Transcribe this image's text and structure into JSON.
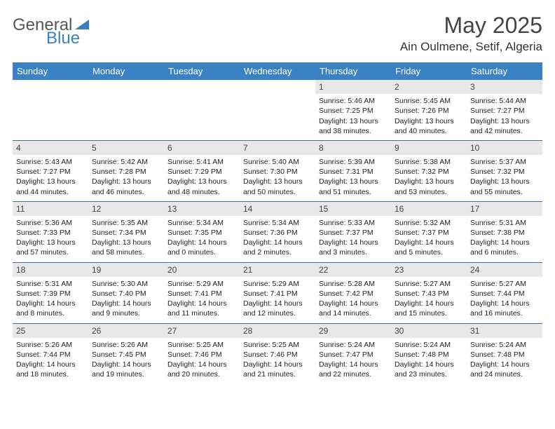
{
  "logo": {
    "general": "General",
    "blue": "Blue"
  },
  "header": {
    "month_title": "May 2025",
    "location": "Ain Oulmene, Setif, Algeria"
  },
  "colors": {
    "header_bg": "#3a82c4",
    "header_text": "#ffffff",
    "row_border": "#3a6fa5",
    "daynum_bg": "#e8e8e8",
    "logo_blue": "#3a7fc4",
    "logo_gray": "#555555"
  },
  "weekdays": [
    "Sunday",
    "Monday",
    "Tuesday",
    "Wednesday",
    "Thursday",
    "Friday",
    "Saturday"
  ],
  "weeks": [
    [
      {
        "day": "",
        "sunrise": "",
        "sunset": "",
        "daylight": ""
      },
      {
        "day": "",
        "sunrise": "",
        "sunset": "",
        "daylight": ""
      },
      {
        "day": "",
        "sunrise": "",
        "sunset": "",
        "daylight": ""
      },
      {
        "day": "",
        "sunrise": "",
        "sunset": "",
        "daylight": ""
      },
      {
        "day": "1",
        "sunrise": "Sunrise: 5:46 AM",
        "sunset": "Sunset: 7:25 PM",
        "daylight": "Daylight: 13 hours and 38 minutes."
      },
      {
        "day": "2",
        "sunrise": "Sunrise: 5:45 AM",
        "sunset": "Sunset: 7:26 PM",
        "daylight": "Daylight: 13 hours and 40 minutes."
      },
      {
        "day": "3",
        "sunrise": "Sunrise: 5:44 AM",
        "sunset": "Sunset: 7:27 PM",
        "daylight": "Daylight: 13 hours and 42 minutes."
      }
    ],
    [
      {
        "day": "4",
        "sunrise": "Sunrise: 5:43 AM",
        "sunset": "Sunset: 7:27 PM",
        "daylight": "Daylight: 13 hours and 44 minutes."
      },
      {
        "day": "5",
        "sunrise": "Sunrise: 5:42 AM",
        "sunset": "Sunset: 7:28 PM",
        "daylight": "Daylight: 13 hours and 46 minutes."
      },
      {
        "day": "6",
        "sunrise": "Sunrise: 5:41 AM",
        "sunset": "Sunset: 7:29 PM",
        "daylight": "Daylight: 13 hours and 48 minutes."
      },
      {
        "day": "7",
        "sunrise": "Sunrise: 5:40 AM",
        "sunset": "Sunset: 7:30 PM",
        "daylight": "Daylight: 13 hours and 50 minutes."
      },
      {
        "day": "8",
        "sunrise": "Sunrise: 5:39 AM",
        "sunset": "Sunset: 7:31 PM",
        "daylight": "Daylight: 13 hours and 51 minutes."
      },
      {
        "day": "9",
        "sunrise": "Sunrise: 5:38 AM",
        "sunset": "Sunset: 7:32 PM",
        "daylight": "Daylight: 13 hours and 53 minutes."
      },
      {
        "day": "10",
        "sunrise": "Sunrise: 5:37 AM",
        "sunset": "Sunset: 7:32 PM",
        "daylight": "Daylight: 13 hours and 55 minutes."
      }
    ],
    [
      {
        "day": "11",
        "sunrise": "Sunrise: 5:36 AM",
        "sunset": "Sunset: 7:33 PM",
        "daylight": "Daylight: 13 hours and 57 minutes."
      },
      {
        "day": "12",
        "sunrise": "Sunrise: 5:35 AM",
        "sunset": "Sunset: 7:34 PM",
        "daylight": "Daylight: 13 hours and 58 minutes."
      },
      {
        "day": "13",
        "sunrise": "Sunrise: 5:34 AM",
        "sunset": "Sunset: 7:35 PM",
        "daylight": "Daylight: 14 hours and 0 minutes."
      },
      {
        "day": "14",
        "sunrise": "Sunrise: 5:34 AM",
        "sunset": "Sunset: 7:36 PM",
        "daylight": "Daylight: 14 hours and 2 minutes."
      },
      {
        "day": "15",
        "sunrise": "Sunrise: 5:33 AM",
        "sunset": "Sunset: 7:37 PM",
        "daylight": "Daylight: 14 hours and 3 minutes."
      },
      {
        "day": "16",
        "sunrise": "Sunrise: 5:32 AM",
        "sunset": "Sunset: 7:37 PM",
        "daylight": "Daylight: 14 hours and 5 minutes."
      },
      {
        "day": "17",
        "sunrise": "Sunrise: 5:31 AM",
        "sunset": "Sunset: 7:38 PM",
        "daylight": "Daylight: 14 hours and 6 minutes."
      }
    ],
    [
      {
        "day": "18",
        "sunrise": "Sunrise: 5:31 AM",
        "sunset": "Sunset: 7:39 PM",
        "daylight": "Daylight: 14 hours and 8 minutes."
      },
      {
        "day": "19",
        "sunrise": "Sunrise: 5:30 AM",
        "sunset": "Sunset: 7:40 PM",
        "daylight": "Daylight: 14 hours and 9 minutes."
      },
      {
        "day": "20",
        "sunrise": "Sunrise: 5:29 AM",
        "sunset": "Sunset: 7:41 PM",
        "daylight": "Daylight: 14 hours and 11 minutes."
      },
      {
        "day": "21",
        "sunrise": "Sunrise: 5:29 AM",
        "sunset": "Sunset: 7:41 PM",
        "daylight": "Daylight: 14 hours and 12 minutes."
      },
      {
        "day": "22",
        "sunrise": "Sunrise: 5:28 AM",
        "sunset": "Sunset: 7:42 PM",
        "daylight": "Daylight: 14 hours and 14 minutes."
      },
      {
        "day": "23",
        "sunrise": "Sunrise: 5:27 AM",
        "sunset": "Sunset: 7:43 PM",
        "daylight": "Daylight: 14 hours and 15 minutes."
      },
      {
        "day": "24",
        "sunrise": "Sunrise: 5:27 AM",
        "sunset": "Sunset: 7:44 PM",
        "daylight": "Daylight: 14 hours and 16 minutes."
      }
    ],
    [
      {
        "day": "25",
        "sunrise": "Sunrise: 5:26 AM",
        "sunset": "Sunset: 7:44 PM",
        "daylight": "Daylight: 14 hours and 18 minutes."
      },
      {
        "day": "26",
        "sunrise": "Sunrise: 5:26 AM",
        "sunset": "Sunset: 7:45 PM",
        "daylight": "Daylight: 14 hours and 19 minutes."
      },
      {
        "day": "27",
        "sunrise": "Sunrise: 5:25 AM",
        "sunset": "Sunset: 7:46 PM",
        "daylight": "Daylight: 14 hours and 20 minutes."
      },
      {
        "day": "28",
        "sunrise": "Sunrise: 5:25 AM",
        "sunset": "Sunset: 7:46 PM",
        "daylight": "Daylight: 14 hours and 21 minutes."
      },
      {
        "day": "29",
        "sunrise": "Sunrise: 5:24 AM",
        "sunset": "Sunset: 7:47 PM",
        "daylight": "Daylight: 14 hours and 22 minutes."
      },
      {
        "day": "30",
        "sunrise": "Sunrise: 5:24 AM",
        "sunset": "Sunset: 7:48 PM",
        "daylight": "Daylight: 14 hours and 23 minutes."
      },
      {
        "day": "31",
        "sunrise": "Sunrise: 5:24 AM",
        "sunset": "Sunset: 7:48 PM",
        "daylight": "Daylight: 14 hours and 24 minutes."
      }
    ]
  ]
}
